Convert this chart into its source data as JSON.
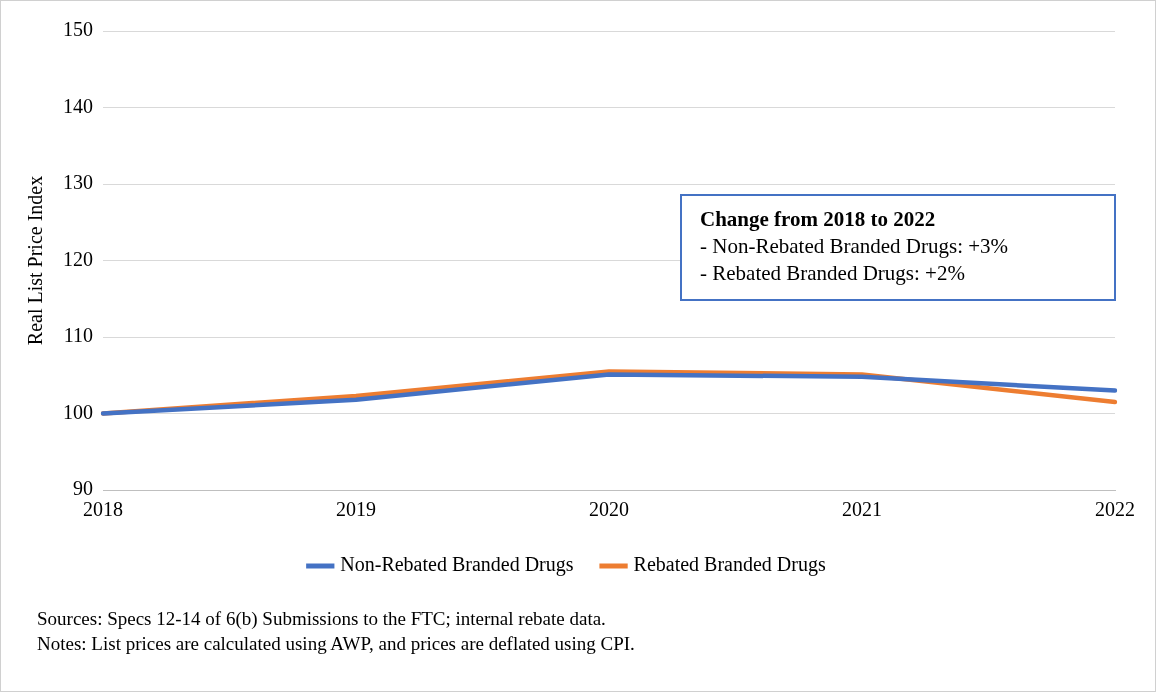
{
  "chart_data": {
    "type": "line",
    "ylabel": "Real List Price Index",
    "categories": [
      "2018",
      "2019",
      "2020",
      "2021",
      "2022"
    ],
    "series": [
      {
        "name": "Non-Rebated Branded Drugs",
        "color": "#4472c4",
        "values": [
          100,
          101.8,
          105.1,
          104.8,
          103.0
        ]
      },
      {
        "name": "Rebated Branded Drugs",
        "color": "#ed7d31",
        "values": [
          100,
          102.3,
          105.5,
          105.1,
          101.5
        ]
      }
    ],
    "ylim": [
      90,
      150
    ],
    "yticks": [
      90,
      100,
      110,
      120,
      130,
      140,
      150
    ],
    "grid": "y",
    "legend": "bottom",
    "marker": "none",
    "line_style": "solid",
    "annotations": [
      "Change from 2018 to 2022",
      "- Non-Rebated Branded Drugs: +3%",
      "- Rebated Branded Drugs: +2%",
      "Sources: Specs 12-14 of 6(b) Submissions to the FTC; internal rebate data.",
      "Notes: List prices are calculated using AWP, and prices are deflated using CPI."
    ]
  }
}
